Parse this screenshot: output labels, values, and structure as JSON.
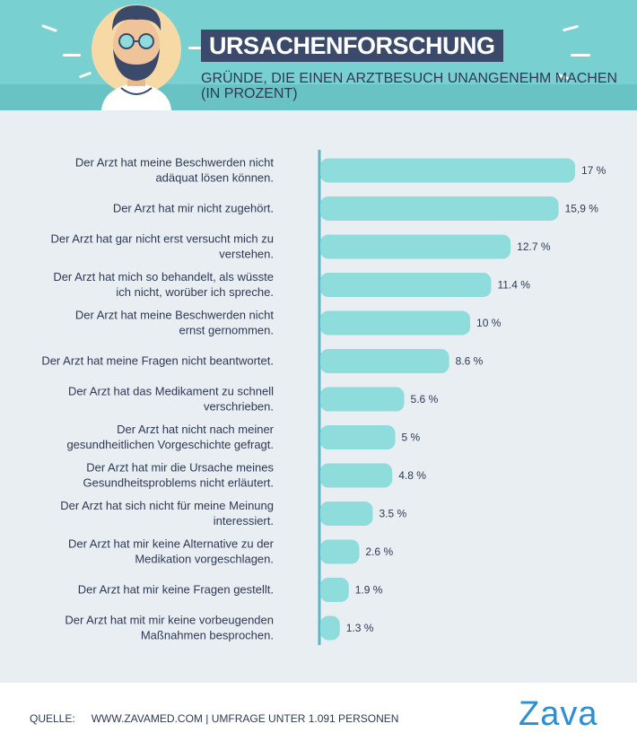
{
  "header": {
    "title": "URSACHENFORSCHUNG",
    "subtitle": "GRÜNDE, DIE EINEN ARZTBESUCH UNANGENEHM MACHEN (IN PROZENT)"
  },
  "colors": {
    "header_bg": "#78d0d1",
    "title_bg": "#3b4a6b",
    "bar": "#8fdcdc",
    "axis": "#5cb6c2",
    "label": "#2d3a55",
    "panel_bg": "#e9eef2",
    "logo": "#2a8fd4"
  },
  "icons": [
    "doctor-avatar-icon"
  ],
  "chart_data": {
    "type": "bar",
    "orientation": "horizontal",
    "title": "GRÜNDE, DIE EINEN ARZTBESUCH UNANGENEHM MACHEN (IN PROZENT)",
    "xlim": [
      0,
      17
    ],
    "grid": false,
    "categories": [
      [
        "Der Arzt hat meine Beschwerden nicht",
        "adäquat lösen können."
      ],
      [
        "Der Arzt hat mir nicht zugehört."
      ],
      [
        "Der Arzt hat gar nicht erst versucht mich zu",
        "verstehen."
      ],
      [
        "Der Arzt hat mich so behandelt, als wüsste",
        "ich nicht, worüber ich spreche."
      ],
      [
        "Der Arzt hat meine Beschwerden nicht",
        "ernst gernommen."
      ],
      [
        "Der Arzt hat meine Fragen nicht beantwortet."
      ],
      [
        "Der Arzt hat das Medikament zu schnell",
        "verschrieben."
      ],
      [
        "Der Arzt hat nicht nach meiner",
        "gesundheitlichen Vorgeschichte gefragt."
      ],
      [
        "Der Arzt hat mir die Ursache meines",
        "Gesundheitsproblems nicht erläutert."
      ],
      [
        "Der Arzt hat sich nicht für meine Meinung",
        "interessiert."
      ],
      [
        "Der Arzt hat mir keine Alternative zu der",
        "Medikation vorgeschlagen."
      ],
      [
        "Der Arzt hat mir keine Fragen gestellt."
      ],
      [
        "Der Arzt hat mit mir keine vorbeugenden",
        "Maßnahmen besprochen."
      ]
    ],
    "values": [
      17,
      15.9,
      12.7,
      11.4,
      10,
      8.6,
      5.6,
      5,
      4.8,
      3.5,
      2.6,
      1.9,
      1.3
    ],
    "value_labels": [
      "17 %",
      "15,9 %",
      "12.7  %",
      "11.4 %",
      "10 %",
      "8.6 %",
      "5.6 %",
      "5 %",
      "4.8 %",
      "3.5 %",
      "2.6 %",
      "1.9 %",
      "1.3 %"
    ]
  },
  "footer": {
    "source_label": "QUELLE:",
    "source_text": "WWW.ZAVAMED.COM | UMFRAGE UNTER 1.091 PERSONEN",
    "logo": "Zava"
  }
}
